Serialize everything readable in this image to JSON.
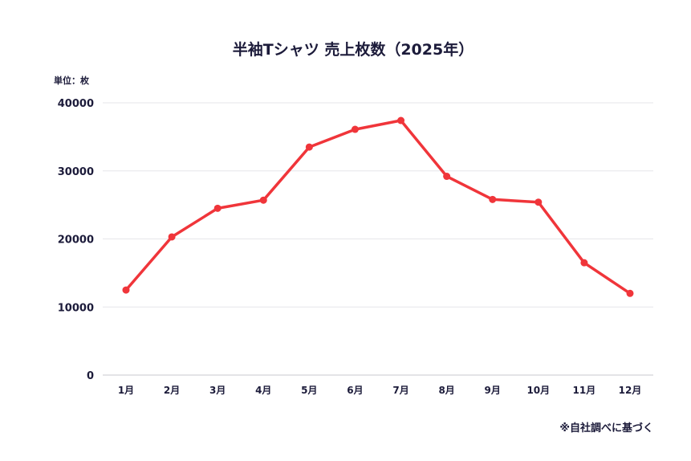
{
  "chart_data": {
    "type": "line",
    "title": "半袖Tシャツ 売上枚数（2025年）",
    "unit_label": "単位：枚",
    "xlabel": "",
    "ylabel": "",
    "categories": [
      "1月",
      "2月",
      "3月",
      "4月",
      "5月",
      "6月",
      "7月",
      "8月",
      "9月",
      "10月",
      "11月",
      "12月"
    ],
    "series": [
      {
        "name": "半袖Tシャツ",
        "values": [
          12500,
          20300,
          24500,
          25700,
          33500,
          36100,
          37400,
          29200,
          25800,
          25400,
          16500,
          12000
        ]
      }
    ],
    "ylim": [
      0,
      40000
    ],
    "yticks": [
      "0",
      "10000",
      "20000",
      "30000",
      "40000"
    ],
    "grid": true,
    "line_color": "#f0353a",
    "source_note": "※自社調べに基づく"
  }
}
